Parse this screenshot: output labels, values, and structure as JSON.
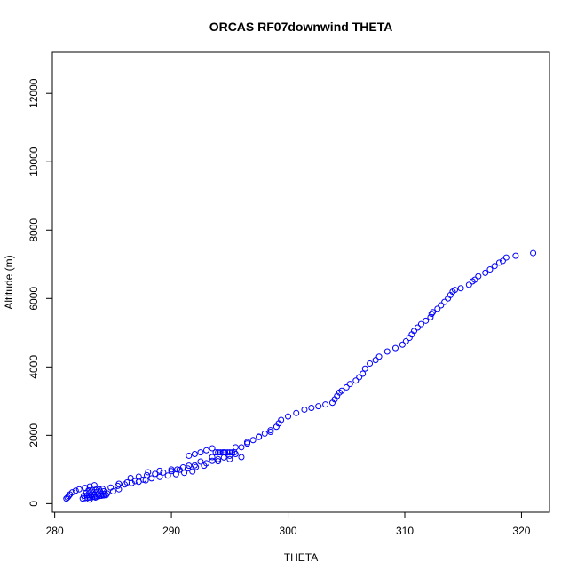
{
  "chart_data": {
    "type": "scatter",
    "title": "ORCAS RF07downwind THETA",
    "xlabel": "THETA",
    "ylabel": "Altitude (m)",
    "xlim": [
      279.8,
      322.4
    ],
    "ylim": [
      -250,
      13200
    ],
    "xticks": [
      280,
      290,
      300,
      310,
      320
    ],
    "yticks": [
      0,
      2000,
      4000,
      6000,
      8000,
      10000,
      12000
    ],
    "marker_color": "#0000ff",
    "marker": "open-circle",
    "grid": false,
    "points": {
      "x": [
        281.0,
        281.1,
        281.2,
        281.3,
        281.5,
        281.8,
        282.1,
        282.6,
        283.0,
        283.4,
        282.4,
        282.6,
        282.8,
        283.0,
        283.2,
        283.4,
        283.6,
        283.8,
        284.0,
        284.2,
        284.4,
        282.5,
        282.8,
        283.1,
        283.4,
        283.7,
        284.0,
        284.3,
        282.7,
        283.0,
        283.3,
        283.6,
        283.9,
        284.2,
        282.9,
        283.2,
        283.5,
        283.8,
        284.1,
        283.0,
        283.5,
        284.0,
        284.5,
        285.0,
        285.5,
        284.8,
        285.4,
        286.0,
        286.6,
        287.2,
        287.8,
        285.5,
        286.2,
        286.9,
        287.6,
        288.3,
        289.0,
        289.7,
        290.4,
        291.1,
        291.8,
        286.5,
        287.2,
        287.9,
        288.6,
        289.3,
        290.0,
        290.7,
        291.4,
        292.1,
        292.8,
        288.0,
        289.0,
        290.0,
        291.0,
        292.0,
        293.0,
        294.0,
        295.0,
        296.0,
        291.5,
        292.0,
        292.5,
        293.0,
        293.5,
        293.8,
        294.0,
        294.2,
        294.4,
        294.6,
        294.8,
        295.0,
        295.2,
        295.4,
        293.5,
        294.0,
        294.5,
        295.0,
        295.5,
        296.0,
        296.5,
        297.0,
        297.5,
        298.0,
        298.5,
        299.0,
        299.2,
        299.4,
        290.5,
        291.5,
        292.5,
        293.5,
        294.5,
        295.5,
        296.5,
        297.5,
        298.5,
        300.0,
        300.7,
        301.4,
        302.0,
        302.6,
        303.2,
        303.8,
        304.0,
        304.2,
        304.4,
        304.6,
        305.0,
        305.3,
        305.8,
        306.1,
        306.4,
        306.6,
        307.0,
        307.5,
        307.8,
        308.5,
        309.2,
        309.8,
        310.1,
        310.4,
        310.6,
        310.8,
        311.1,
        311.4,
        311.8,
        312.2,
        312.3,
        312.4,
        312.8,
        313.1,
        313.4,
        313.7,
        313.9,
        314.1,
        314.3,
        314.8,
        315.5,
        315.8,
        316.0,
        316.3,
        316.9,
        317.3,
        317.7,
        318.1,
        318.4,
        318.7,
        319.5,
        321.0
      ],
      "y": [
        150,
        180,
        220,
        270,
        330,
        380,
        420,
        460,
        500,
        540,
        150,
        160,
        170,
        180,
        190,
        200,
        210,
        220,
        230,
        240,
        250,
        230,
        240,
        250,
        260,
        270,
        280,
        290,
        310,
        320,
        330,
        340,
        350,
        360,
        390,
        400,
        410,
        420,
        430,
        120,
        180,
        240,
        300,
        360,
        420,
        470,
        520,
        560,
        600,
        640,
        680,
        580,
        620,
        660,
        700,
        740,
        780,
        820,
        860,
        900,
        940,
        750,
        790,
        830,
        870,
        910,
        950,
        990,
        1030,
        1070,
        1110,
        920,
        960,
        1000,
        1060,
        1120,
        1180,
        1240,
        1300,
        1360,
        1400,
        1450,
        1500,
        1560,
        1620,
        1500,
        1500,
        1500,
        1500,
        1500,
        1500,
        1500,
        1500,
        1500,
        1250,
        1300,
        1350,
        1400,
        1450,
        1650,
        1760,
        1860,
        1960,
        2050,
        2150,
        2250,
        2350,
        2450,
        1000,
        1110,
        1230,
        1360,
        1500,
        1650,
        1800,
        1950,
        2100,
        2550,
        2650,
        2750,
        2800,
        2850,
        2900,
        2950,
        3050,
        3150,
        3250,
        3300,
        3400,
        3500,
        3600,
        3700,
        3800,
        3950,
        4100,
        4200,
        4300,
        4450,
        4550,
        4650,
        4750,
        4850,
        4950,
        5050,
        5150,
        5250,
        5350,
        5450,
        5550,
        5600,
        5700,
        5800,
        5900,
        6000,
        6100,
        6200,
        6250,
        6300,
        6400,
        6500,
        6550,
        6650,
        6750,
        6850,
        6950,
        7050,
        7100,
        7200,
        7250,
        7330
      ]
    }
  }
}
